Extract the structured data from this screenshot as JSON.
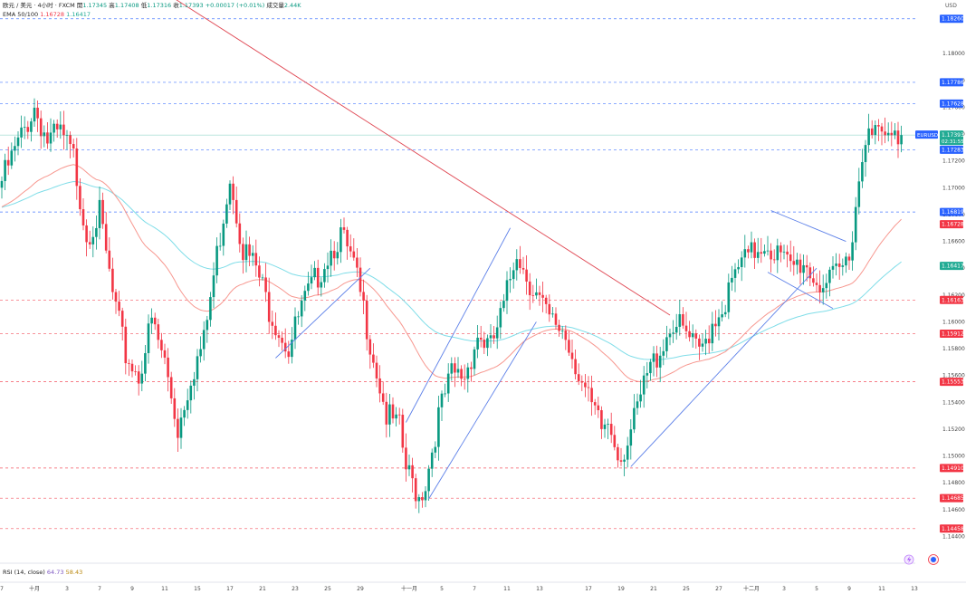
{
  "header": {
    "symbol_line": "欧元 / 美元 · 4小时 · FXCM",
    "open_label": "開",
    "open": "1.17345",
    "high_label": "高",
    "high": "1.17408",
    "low_label": "低",
    "low": "1.17316",
    "close_label": "收",
    "close": "1.17393",
    "change": "+0.00017 (+0.01%)",
    "volume_label": "成交量",
    "volume": "2.44K",
    "ema_label": "EMA 50/100",
    "ema50": "1.16728",
    "ema100": "1.16417"
  },
  "rsi": {
    "label": "RSI (14, close)",
    "value1": "64.73",
    "value2": "58.43"
  },
  "colors": {
    "up": "#089981",
    "down": "#f23645",
    "ema50": "#f7978f",
    "ema100": "#7fdde8",
    "trend_blue": "#5b7fe8",
    "trend_red": "#e04a55",
    "current_price": "#22ab94"
  },
  "chart_data": {
    "type": "candlestick",
    "symbol": "EURUSD",
    "currency": "USD",
    "y_axis": {
      "min": 1.142,
      "max": 1.184,
      "ticks": [
        "1.18000",
        "1.17800",
        "1.17600",
        "1.17400",
        "1.17200",
        "1.17000",
        "1.16800",
        "1.16600",
        "1.16400",
        "1.16200",
        "1.16000",
        "1.15800",
        "1.15600",
        "1.15400",
        "1.15200",
        "1.15000",
        "1.14800",
        "1.14600",
        "1.14400",
        "1.14200"
      ]
    },
    "x_axis": {
      "labels": [
        {
          "text": "7",
          "slot": 0
        },
        {
          "text": "十月",
          "slot": 10
        },
        {
          "text": "3",
          "slot": 20
        },
        {
          "text": "7",
          "slot": 30
        },
        {
          "text": "9",
          "slot": 40
        },
        {
          "text": "11",
          "slot": 50
        },
        {
          "text": "15",
          "slot": 60
        },
        {
          "text": "17",
          "slot": 70
        },
        {
          "text": "21",
          "slot": 80
        },
        {
          "text": "23",
          "slot": 90
        },
        {
          "text": "25",
          "slot": 100
        },
        {
          "text": "29",
          "slot": 110
        },
        {
          "text": "十一月",
          "slot": 125
        },
        {
          "text": "5",
          "slot": 135
        },
        {
          "text": "7",
          "slot": 145
        },
        {
          "text": "11",
          "slot": 155
        },
        {
          "text": "13",
          "slot": 165
        },
        {
          "text": "17",
          "slot": 180
        },
        {
          "text": "19",
          "slot": 190
        },
        {
          "text": "21",
          "slot": 200
        },
        {
          "text": "25",
          "slot": 210
        },
        {
          "text": "27",
          "slot": 220
        },
        {
          "text": "十二月",
          "slot": 230
        },
        {
          "text": "3",
          "slot": 240
        },
        {
          "text": "5",
          "slot": 250
        },
        {
          "text": "9",
          "slot": 260
        },
        {
          "text": "11",
          "slot": 270
        },
        {
          "text": "13",
          "slot": 280
        }
      ]
    },
    "current_price": {
      "label": "EURUSD",
      "value": "1.17393",
      "countdown": "02:31:55"
    },
    "price_levels": [
      {
        "value": 1.1826,
        "label": "1.18260",
        "color": "#2962ff",
        "style": "dashed"
      },
      {
        "value": 1.17786,
        "label": "1.17786",
        "color": "#2962ff",
        "style": "dashed"
      },
      {
        "value": 1.17628,
        "label": "1.17628",
        "color": "#2962ff",
        "style": "dashed"
      },
      {
        "value": 1.17283,
        "label": "1.17283",
        "color": "#2962ff",
        "style": "dashed"
      },
      {
        "value": 1.16819,
        "label": "1.16819",
        "color": "#2962ff",
        "style": "dashed"
      },
      {
        "value": 1.16728,
        "label": "1.16728",
        "color": "#f23645",
        "style": "solid"
      },
      {
        "value": 1.16417,
        "label": "1.16417",
        "color": "#22ab94",
        "style": "solid"
      },
      {
        "value": 1.16163,
        "label": "1.16163",
        "color": "#f23645",
        "style": "dashed"
      },
      {
        "value": 1.15912,
        "label": "1.15912",
        "color": "#f23645",
        "style": "dashed"
      },
      {
        "value": 1.15553,
        "label": "1.15553",
        "color": "#f23645",
        "style": "dashed"
      },
      {
        "value": 1.1491,
        "label": "1.14910",
        "color": "#f23645",
        "style": "dashed"
      },
      {
        "value": 1.14685,
        "label": "1.14685",
        "color": "#f23645",
        "style": "dashed"
      },
      {
        "value": 1.14458,
        "label": "1.14458",
        "color": "#f23645",
        "style": "dashed"
      }
    ],
    "anchors": [
      [
        0,
        1.1705
      ],
      [
        6,
        1.1738
      ],
      [
        10,
        1.176
      ],
      [
        14,
        1.1735
      ],
      [
        18,
        1.174
      ],
      [
        22,
        1.1722
      ],
      [
        26,
        1.1665
      ],
      [
        30,
        1.168
      ],
      [
        34,
        1.162
      ],
      [
        38,
        1.1575
      ],
      [
        42,
        1.156
      ],
      [
        46,
        1.16
      ],
      [
        50,
        1.157
      ],
      [
        54,
        1.152
      ],
      [
        58,
        1.156
      ],
      [
        62,
        1.1585
      ],
      [
        66,
        1.165
      ],
      [
        70,
        1.171
      ],
      [
        74,
        1.1655
      ],
      [
        78,
        1.164
      ],
      [
        82,
        1.161
      ],
      [
        86,
        1.159
      ],
      [
        88,
        1.158
      ],
      [
        92,
        1.161
      ],
      [
        96,
        1.163
      ],
      [
        100,
        1.165
      ],
      [
        104,
        1.1665
      ],
      [
        108,
        1.164
      ],
      [
        110,
        1.162
      ],
      [
        114,
        1.1575
      ],
      [
        118,
        1.153
      ],
      [
        122,
        1.152
      ],
      [
        124,
        1.149
      ],
      [
        128,
        1.147
      ],
      [
        130,
        1.148
      ],
      [
        134,
        1.153
      ],
      [
        138,
        1.156
      ],
      [
        142,
        1.156
      ],
      [
        146,
        1.159
      ],
      [
        150,
        1.158
      ],
      [
        154,
        1.161
      ],
      [
        158,
        1.1655
      ],
      [
        160,
        1.164
      ],
      [
        164,
        1.162
      ],
      [
        168,
        1.16
      ],
      [
        172,
        1.1595
      ],
      [
        176,
        1.157
      ],
      [
        180,
        1.154
      ],
      [
        184,
        1.152
      ],
      [
        186,
        1.1525
      ],
      [
        190,
        1.15
      ],
      [
        194,
        1.1525
      ],
      [
        198,
        1.156
      ],
      [
        202,
        1.158
      ],
      [
        206,
        1.16
      ],
      [
        210,
        1.159
      ],
      [
        214,
        1.1575
      ],
      [
        218,
        1.16
      ],
      [
        222,
        1.1615
      ],
      [
        226,
        1.164
      ],
      [
        230,
        1.165
      ],
      [
        234,
        1.166
      ],
      [
        238,
        1.165
      ],
      [
        242,
        1.164
      ],
      [
        246,
        1.1645
      ],
      [
        250,
        1.163
      ],
      [
        254,
        1.1628
      ],
      [
        258,
        1.164
      ],
      [
        260,
        1.165
      ],
      [
        262,
        1.169
      ],
      [
        264,
        1.172
      ],
      [
        266,
        1.1755
      ],
      [
        268,
        1.174
      ],
      [
        272,
        1.1735
      ],
      [
        276,
        1.1739
      ]
    ],
    "trend_lines": [
      {
        "color": "#e04a55",
        "points": [
          [
            44,
            1.1855
          ],
          [
            205,
            1.1605
          ]
        ]
      },
      {
        "color": "#5b7fe8",
        "points": [
          [
            84,
            1.1573
          ],
          [
            113,
            1.164
          ]
        ]
      },
      {
        "color": "#5b7fe8",
        "points": [
          [
            124,
            1.1525
          ],
          [
            156,
            1.167
          ]
        ]
      },
      {
        "color": "#5b7fe8",
        "points": [
          [
            131,
            1.1468
          ],
          [
            164,
            1.16
          ]
        ]
      },
      {
        "color": "#5b7fe8",
        "points": [
          [
            193,
            1.1492
          ],
          [
            250,
            1.164
          ]
        ]
      },
      {
        "color": "#5b7fe8",
        "points": [
          [
            236,
            1.1683
          ],
          [
            259,
            1.166
          ]
        ]
      },
      {
        "color": "#5b7fe8",
        "points": [
          [
            235,
            1.1637
          ],
          [
            255,
            1.161
          ]
        ]
      }
    ]
  }
}
